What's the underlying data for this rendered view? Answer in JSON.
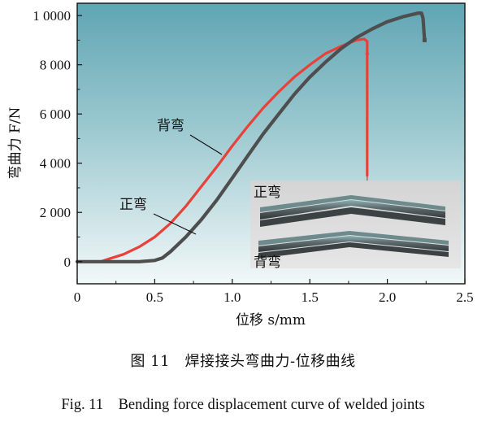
{
  "chart_data": {
    "type": "line",
    "xlabel": "位移 s/mm",
    "ylabel": "弯曲力 F/N",
    "xlim": [
      0,
      2.5
    ],
    "ylim": [
      -900,
      10500
    ],
    "xticks": [
      0,
      0.5,
      1.0,
      1.5,
      2.0,
      2.5
    ],
    "xtick_labels": [
      "0",
      "0.5",
      "1.0",
      "1.5",
      "2.0",
      "2.5"
    ],
    "yticks": [
      0,
      2000,
      4000,
      6000,
      8000,
      10000
    ],
    "ytick_labels": [
      "0",
      "2 000",
      "4 000",
      "6 000",
      "8 000",
      "1 0000"
    ],
    "series": [
      {
        "name": "背弯",
        "color": "#e8413a",
        "x": [
          0,
          0.15,
          0.2,
          0.3,
          0.4,
          0.5,
          0.6,
          0.7,
          0.8,
          0.9,
          1.0,
          1.1,
          1.2,
          1.3,
          1.4,
          1.5,
          1.6,
          1.7,
          1.8,
          1.85,
          1.87,
          1.87,
          1.87
        ],
        "y": [
          0,
          0,
          100,
          300,
          600,
          1000,
          1550,
          2250,
          3050,
          3850,
          4700,
          5500,
          6250,
          6900,
          7500,
          8000,
          8450,
          8750,
          9000,
          9050,
          8950,
          4500,
          3500
        ]
      },
      {
        "name": "正弯",
        "color": "#4e4e4e",
        "x": [
          0,
          0.4,
          0.5,
          0.55,
          0.6,
          0.7,
          0.8,
          0.9,
          1.0,
          1.1,
          1.2,
          1.3,
          1.4,
          1.5,
          1.6,
          1.7,
          1.8,
          1.9,
          2.0,
          2.1,
          2.2,
          2.22,
          2.23,
          2.24
        ],
        "y": [
          0,
          0,
          50,
          150,
          400,
          1000,
          1700,
          2500,
          3400,
          4300,
          5200,
          6000,
          6800,
          7500,
          8100,
          8650,
          9100,
          9450,
          9750,
          9950,
          10100,
          10100,
          9900,
          9000
        ]
      }
    ],
    "annotations": [
      "背弯",
      "正弯"
    ],
    "inset_labels": [
      "正弯",
      "背弯"
    ],
    "grid": false
  },
  "figure": {
    "caption_cn": "图 11　焊接接头弯曲力-位移曲线",
    "caption_en": "Fig. 11　Bending force displacement curve of welded joints"
  },
  "colors": {
    "plot_background_top": "#5aa0ae",
    "plot_background_bottom": "#eef6f6",
    "inset_background": "#d9d9d9"
  }
}
